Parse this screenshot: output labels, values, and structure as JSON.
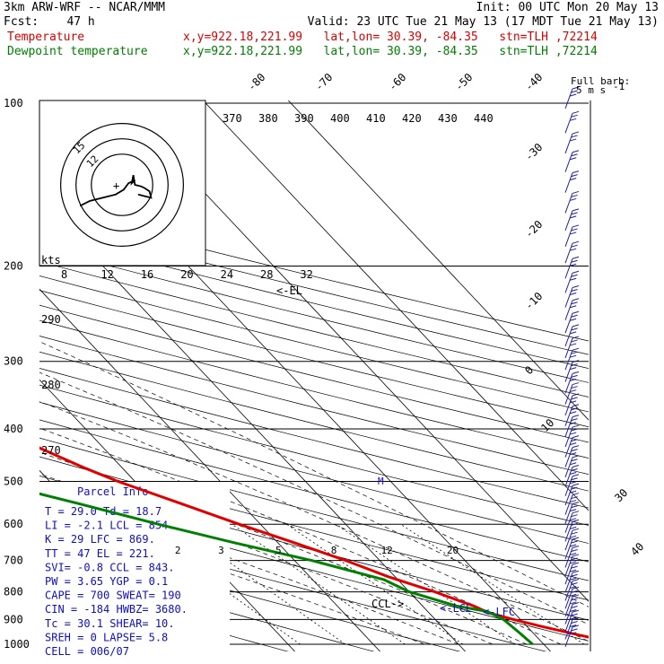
{
  "header": {
    "line1_left": "3km ARW-WRF -- NCAR/MMM",
    "line1_right": "Init: 00 UTC Mon 20 May 13",
    "line2_left": "Fcst:    47 h",
    "line2_right": "Valid: 23 UTC Tue 21 May 13 (17 MDT Tue 21 May 13)",
    "line3_left": "Temperature",
    "line3_right": "x,y=922.18,221.99   lat,lon= 30.39, -84.35   stn=TLH ,72214",
    "line4_left": "Dewpoint temperature",
    "line4_right": "x,y=922.18,221.99   lat,lon= 30.39, -84.35   stn=TLH ,72214",
    "temp_color": "#e00000",
    "dew_color": "#008000"
  },
  "chart_data": {
    "type": "line",
    "title": "",
    "pressure_axis": {
      "labels": [
        "100",
        "200",
        "300",
        "400",
        "500",
        "600",
        "700",
        "800",
        "900",
        "1000"
      ],
      "values": [
        100,
        200,
        300,
        400,
        500,
        600,
        700,
        800,
        900,
        1000
      ]
    },
    "isotherm_labels": [
      "-80",
      "-70",
      "-60",
      "-50",
      "-40",
      "-30",
      "-20",
      "-10",
      "0",
      "10",
      "30",
      "40"
    ],
    "isotherm_values": [
      -80,
      -70,
      -60,
      -50,
      -40,
      -30,
      -20,
      -10,
      0,
      10,
      30,
      40
    ],
    "theta_labels": [
      "370",
      "380",
      "390",
      "400",
      "410",
      "420",
      "430",
      "440"
    ],
    "theta_values": [
      370,
      380,
      390,
      400,
      410,
      420,
      430,
      440
    ],
    "mixing_ratio_labels": [
      "2",
      "3",
      "5",
      "8",
      "12",
      "20"
    ],
    "mixing_ratio_values": [
      2,
      3,
      5,
      8,
      12,
      20
    ],
    "height_labels": [
      "290",
      "280",
      "270"
    ],
    "series": [
      {
        "name": "Temperature",
        "color": "#e00000",
        "points": [
          [
            1000,
            29.0
          ],
          [
            960,
            25.0
          ],
          [
            925,
            21.5
          ],
          [
            900,
            19.2
          ],
          [
            875,
            17.0
          ],
          [
            850,
            16.0
          ],
          [
            800,
            13.0
          ],
          [
            750,
            9.2
          ],
          [
            700,
            6.0
          ],
          [
            650,
            2.0
          ],
          [
            600,
            -2.5
          ],
          [
            550,
            -7.0
          ],
          [
            500,
            -12.0
          ],
          [
            470,
            -14.6
          ],
          [
            430,
            -17.8
          ],
          [
            400,
            -20.8
          ],
          [
            350,
            -26.4
          ],
          [
            300,
            -33.9
          ],
          [
            250,
            -43.3
          ],
          [
            220,
            -50.3
          ],
          [
            200,
            -55.8
          ],
          [
            180,
            -61.4
          ],
          [
            160,
            -65.9
          ],
          [
            150,
            -67.4
          ],
          [
            140,
            -67.6
          ],
          [
            125,
            -66.2
          ],
          [
            112,
            -64.2
          ],
          [
            100,
            -62.0
          ]
        ]
      },
      {
        "name": "Dewpoint temperature",
        "color": "#008000",
        "points": [
          [
            1000,
            18.7
          ],
          [
            950,
            18.4
          ],
          [
            900,
            18.0
          ],
          [
            870,
            17.0
          ],
          [
            850,
            14.0
          ],
          [
            800,
            10.0
          ],
          [
            760,
            8.4
          ],
          [
            700,
            2.0
          ],
          [
            650,
            -5.0
          ],
          [
            600,
            -12.0
          ],
          [
            550,
            -19.0
          ],
          [
            500,
            -27.0
          ],
          [
            470,
            -31.0
          ],
          [
            455,
            -28.7
          ],
          [
            440,
            -28.0
          ],
          [
            410,
            -38.8
          ],
          [
            370,
            -67.2
          ],
          [
            330,
            -62.4
          ],
          [
            300,
            -58.9
          ],
          [
            250,
            -56.2
          ],
          [
            220,
            -54.3
          ],
          [
            200,
            -54.4
          ],
          [
            190,
            -59.1
          ],
          [
            180,
            -66.0
          ],
          [
            160,
            -72.0
          ],
          [
            150,
            -74.0
          ],
          [
            130,
            -74.1
          ],
          [
            115,
            -73.0
          ],
          [
            100,
            -72.0
          ]
        ]
      }
    ],
    "annotations": [
      "<-EL",
      "CCL->",
      "<-LCL",
      "<-LFC",
      "M"
    ]
  },
  "hodograph": {
    "kts_label": "kts",
    "speed_axis_labels": [
      "8",
      "12",
      "16",
      "20",
      "24",
      "28",
      "32"
    ],
    "speed_axis_values": [
      8,
      12,
      16,
      20,
      24,
      28,
      32
    ],
    "ring_labels": [
      "15",
      "12"
    ],
    "u_v_kts": [
      [
        -13.0,
        -6.5
      ],
      [
        -10.0,
        -5.0
      ],
      [
        -6.0,
        -4.0
      ],
      [
        -2.0,
        -3.0
      ],
      [
        0.5,
        -1.5
      ],
      [
        2.0,
        0.5
      ],
      [
        3.0,
        1.0
      ],
      [
        4.0,
        1.5
      ],
      [
        3.0,
        0.5
      ],
      [
        3.5,
        3.0
      ],
      [
        4.0,
        0.0
      ],
      [
        6.0,
        -0.5
      ],
      [
        7.0,
        -1.0
      ],
      [
        8.5,
        -2.0
      ],
      [
        9.0,
        -4.0
      ],
      [
        7.0,
        -3.5
      ],
      [
        5.0,
        -3.0
      ]
    ]
  },
  "wind_legend": {
    "line1": "Full barb:",
    "line2": "5 m s",
    "exp": "-1"
  },
  "wind_barbs": {
    "pressures": [
      100,
      111,
      121,
      131,
      143,
      156,
      168,
      180,
      193,
      206,
      219,
      233,
      246,
      260,
      275,
      289,
      304,
      320,
      336,
      352,
      369,
      386,
      404,
      422,
      441,
      460,
      480,
      500,
      520,
      541,
      563,
      585,
      608,
      631,
      655,
      680,
      705,
      731,
      757,
      784,
      812,
      840,
      868,
      897,
      927,
      957,
      988
    ],
    "speed_ms": [
      15,
      15,
      15,
      15,
      15,
      15,
      15,
      15,
      15,
      15,
      15,
      15,
      15,
      15,
      15,
      15,
      15,
      15,
      15,
      15,
      15,
      15,
      15,
      15,
      15,
      15,
      15,
      15,
      15,
      15,
      15,
      15,
      15,
      15,
      15,
      15,
      15,
      15,
      15,
      15,
      15,
      15,
      15,
      15,
      15,
      15,
      15
    ]
  },
  "parcel_info": {
    "title": "Parcel Info",
    "rows": [
      "T  =   29.0  Td =  18.7",
      "LI =   -2.1  LCL =  854.",
      "K  =     29  LFC =  869.",
      "TT =     47  EL  =  221.",
      "SVI=   -0.8  CCL =  843.",
      "PW =   3.65  YGP =   0.1",
      "CAPE =  700  SWEAT=  190",
      "CIN =  -184  HWBZ= 3680.",
      "Tc =   30.1  SHEAR=  10.",
      "SREH =    0  LAPSE=  5.8",
      "CELL = 006/07"
    ]
  }
}
